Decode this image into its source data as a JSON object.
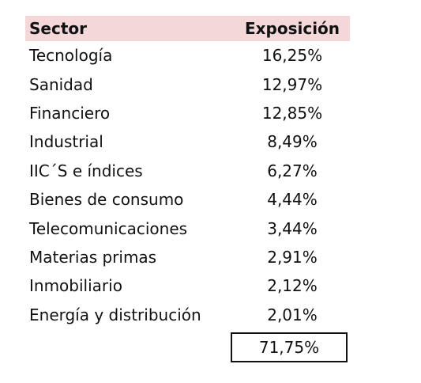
{
  "table": {
    "headers": {
      "sector": "Sector",
      "exposure": "Exposición"
    },
    "rows": [
      {
        "sector": "Tecnología",
        "exposure": "16,25%"
      },
      {
        "sector": "Sanidad",
        "exposure": "12,97%"
      },
      {
        "sector": "Financiero",
        "exposure": "12,85%"
      },
      {
        "sector": "Industrial",
        "exposure": "8,49%"
      },
      {
        "sector": "IIC´S e índices",
        "exposure": "6,27%"
      },
      {
        "sector": "Bienes de consumo",
        "exposure": "4,44%"
      },
      {
        "sector": "Telecomunicaciones",
        "exposure": "3,44%"
      },
      {
        "sector": "Materias primas",
        "exposure": "2,91%"
      },
      {
        "sector": "Inmobiliario",
        "exposure": "2,12%"
      },
      {
        "sector": "Energía y distribución",
        "exposure": "2,01%"
      }
    ],
    "total": "71,75%"
  },
  "colors": {
    "header_background": "#f4d7d9",
    "text": "#111111",
    "total_border": "#111111"
  }
}
